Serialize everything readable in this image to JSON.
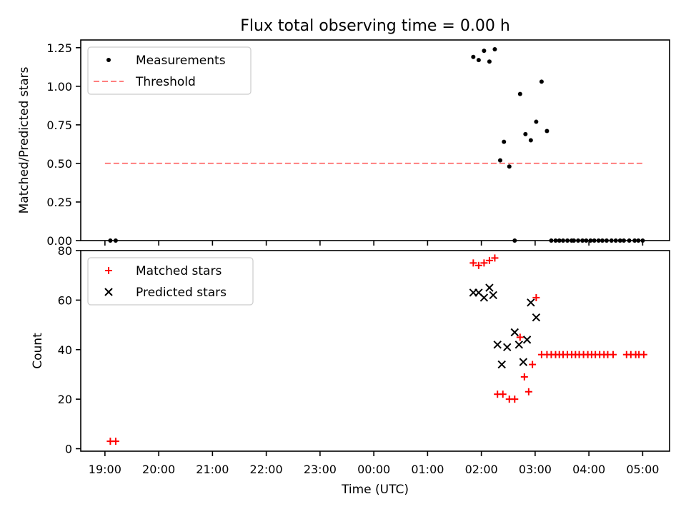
{
  "title": "Flux total observing time = 0.00 h",
  "chart_data": [
    {
      "type": "scatter",
      "panel": "top",
      "ylabel": "Matched/Predicted stars",
      "xlim": [
        -0.45,
        10.5
      ],
      "ylim": [
        0,
        1.3
      ],
      "yticks": [
        0.0,
        0.25,
        0.5,
        0.75,
        1.0,
        1.25
      ],
      "ytick_labels": [
        "0.00",
        "0.25",
        "0.50",
        "0.75",
        "1.00",
        "1.25"
      ],
      "grid": false,
      "legend_position": "upper-left",
      "series": [
        {
          "name": "Measurements",
          "marker": "dot",
          "color": "#000000",
          "x": [
            0.1,
            0.2,
            6.85,
            6.95,
            7.05,
            7.15,
            7.25,
            7.35,
            7.42,
            7.52,
            7.62,
            7.72,
            7.82,
            7.92,
            8.02,
            8.12,
            8.22,
            8.3,
            8.38,
            8.45,
            8.52,
            8.6,
            8.68,
            8.72,
            8.8,
            8.88,
            8.95,
            9.03,
            9.1,
            9.18,
            9.25,
            9.33,
            9.42,
            9.5,
            9.58,
            9.65,
            9.75,
            9.85,
            9.92,
            10.0
          ],
          "y": [
            0.0,
            0.0,
            1.19,
            1.17,
            1.23,
            1.16,
            1.24,
            0.52,
            0.64,
            0.48,
            0.0,
            0.95,
            0.69,
            0.65,
            0.77,
            1.03,
            0.71,
            0.0,
            0.0,
            0.0,
            0.0,
            0.0,
            0.0,
            0.0,
            0.0,
            0.0,
            0.0,
            0.0,
            0.0,
            0.0,
            0.0,
            0.0,
            0.0,
            0.0,
            0.0,
            0.0,
            0.0,
            0.0,
            0.0,
            0.0
          ]
        },
        {
          "name": "Threshold",
          "style": "dashed",
          "color": "#ff7f7f",
          "x": [
            0.0,
            10.0
          ],
          "y": [
            0.5,
            0.5
          ]
        }
      ]
    },
    {
      "type": "scatter",
      "panel": "bottom",
      "xlabel": "Time (UTC)",
      "ylabel": "Count",
      "xlim": [
        -0.45,
        10.5
      ],
      "ylim": [
        -1,
        80
      ],
      "xticks": [
        0,
        1,
        2,
        3,
        4,
        5,
        6,
        7,
        8,
        9,
        10
      ],
      "xtick_labels": [
        "19:00",
        "20:00",
        "21:00",
        "22:00",
        "23:00",
        "00:00",
        "01:00",
        "02:00",
        "03:00",
        "04:00",
        "05:00"
      ],
      "yticks": [
        0,
        20,
        40,
        60,
        80
      ],
      "ytick_labels": [
        "0",
        "20",
        "40",
        "60",
        "80"
      ],
      "grid": false,
      "legend_position": "upper-left",
      "series": [
        {
          "name": "Matched stars",
          "marker": "plus",
          "color": "#ff0000",
          "x": [
            0.1,
            0.2,
            6.85,
            6.95,
            7.05,
            7.15,
            7.25,
            7.3,
            7.4,
            7.52,
            7.62,
            7.72,
            7.8,
            7.88,
            7.95,
            8.02,
            8.12,
            8.22,
            8.3,
            8.38,
            8.45,
            8.52,
            8.6,
            8.68,
            8.75,
            8.82,
            8.9,
            8.98,
            9.05,
            9.12,
            9.2,
            9.28,
            9.35,
            9.45,
            9.7,
            9.78,
            9.87,
            9.93,
            10.02
          ],
          "y": [
            3,
            3,
            75,
            74,
            75,
            76,
            77,
            22,
            22,
            20,
            20,
            45,
            29,
            23,
            34,
            61,
            38,
            38,
            38,
            38,
            38,
            38,
            38,
            38,
            38,
            38,
            38,
            38,
            38,
            38,
            38,
            38,
            38,
            38,
            38,
            38,
            38,
            38,
            38
          ]
        },
        {
          "name": "Predicted stars",
          "marker": "x",
          "color": "#000000",
          "x": [
            6.85,
            6.95,
            7.05,
            7.15,
            7.22,
            7.3,
            7.38,
            7.48,
            7.62,
            7.7,
            7.78,
            7.85,
            7.92,
            8.02
          ],
          "y": [
            63,
            63,
            61,
            65,
            62,
            42,
            34,
            41,
            47,
            42,
            35,
            44,
            59,
            53
          ]
        }
      ]
    }
  ]
}
